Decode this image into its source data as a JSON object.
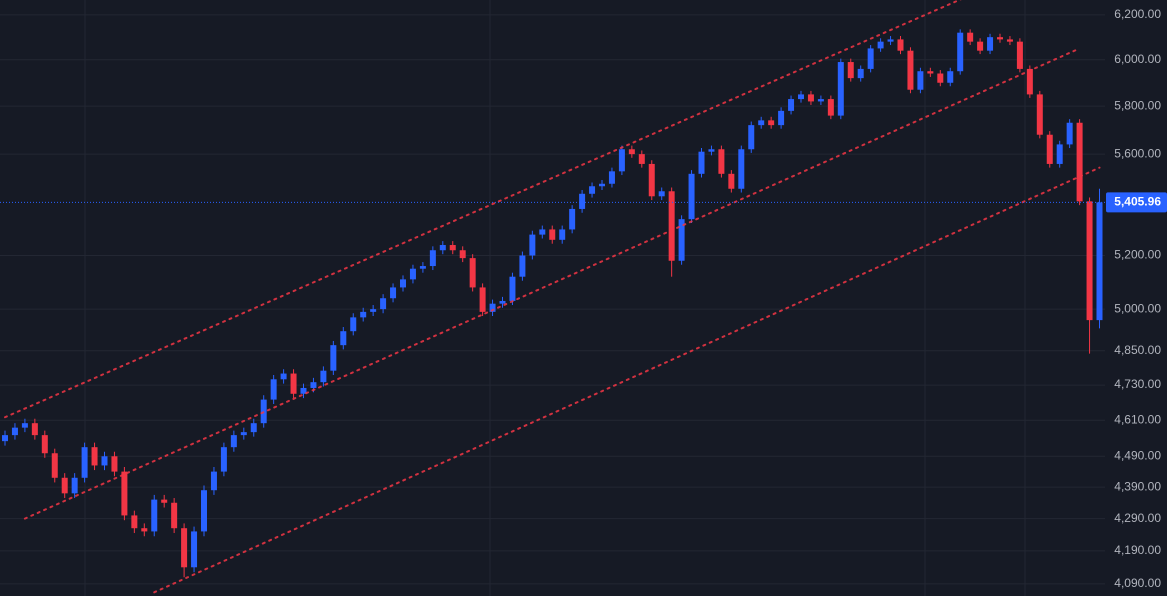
{
  "chart_data": {
    "type": "candlestick",
    "log_scale": true,
    "grid": true,
    "up_color": "#2962ff",
    "down_color": "#f23645",
    "ylim": [
      4054,
      6268
    ],
    "yticks": [
      {
        "value": 6200,
        "label": "6,200.00"
      },
      {
        "value": 6000,
        "label": "6,000.00"
      },
      {
        "value": 5800,
        "label": "5,800.00"
      },
      {
        "value": 5600,
        "label": "5,600.00"
      },
      {
        "value": 5200,
        "label": "5,200.00"
      },
      {
        "value": 5000,
        "label": "5,000.00"
      },
      {
        "value": 4850,
        "label": "4,850.00"
      },
      {
        "value": 4730,
        "label": "4,730.00"
      },
      {
        "value": 4610,
        "label": "4,610.00"
      },
      {
        "value": 4490,
        "label": "4,490.00"
      },
      {
        "value": 4390,
        "label": "4,390.00"
      },
      {
        "value": 4290,
        "label": "4,290.00"
      },
      {
        "value": 4190,
        "label": "4,190.00"
      },
      {
        "value": 4090,
        "label": "4,090.00"
      }
    ],
    "last_price": {
      "value": 5405.96,
      "label": "5,405.96",
      "color": "#2962ff"
    },
    "open": [
      4540,
      4560,
      4585,
      4600,
      4560,
      4500,
      4420,
      4370,
      4420,
      4520,
      4460,
      4490,
      4440,
      4300,
      4260,
      4250,
      4350,
      4340,
      4260,
      4140,
      4250,
      4380,
      4440,
      4520,
      4560,
      4570,
      4600,
      4680,
      4750,
      4770,
      4700,
      4720,
      4740,
      4780,
      4870,
      4920,
      4970,
      4990,
      5000,
      5040,
      5080,
      5110,
      5150,
      5160,
      5220,
      5240,
      5220,
      5190,
      5080,
      4990,
      5020,
      5030,
      5120,
      5200,
      5280,
      5300,
      5260,
      5300,
      5380,
      5440,
      5470,
      5480,
      5530,
      5620,
      5600,
      5560,
      5430,
      5450,
      5180,
      5340,
      5520,
      5610,
      5620,
      5520,
      5460,
      5620,
      5720,
      5740,
      5720,
      5780,
      5830,
      5850,
      5820,
      5830,
      5760,
      5990,
      5920,
      5960,
      6050,
      6080,
      6090,
      6040,
      5870,
      5950,
      5940,
      5900,
      5950,
      6120,
      6080,
      6040,
      6100,
      6090,
      6080,
      5960,
      5850,
      5680,
      5560,
      5640,
      5730,
      5410,
      4960
    ],
    "high": [
      4575,
      4600,
      4615,
      4615,
      4575,
      4515,
      4435,
      4435,
      4535,
      4535,
      4505,
      4505,
      4455,
      4315,
      4275,
      4365,
      4365,
      4355,
      4275,
      4265,
      4395,
      4455,
      4535,
      4575,
      4585,
      4615,
      4695,
      4765,
      4785,
      4785,
      4735,
      4755,
      4795,
      4885,
      4935,
      4985,
      5005,
      5015,
      5055,
      5095,
      5125,
      5165,
      5175,
      5235,
      5255,
      5255,
      5235,
      5205,
      5095,
      5035,
      5045,
      5135,
      5215,
      5295,
      5315,
      5315,
      5315,
      5395,
      5455,
      5485,
      5495,
      5545,
      5635,
      5635,
      5615,
      5575,
      5465,
      5465,
      5355,
      5535,
      5625,
      5635,
      5635,
      5535,
      5635,
      5735,
      5755,
      5755,
      5795,
      5845,
      5865,
      5865,
      5845,
      5845,
      6005,
      6005,
      5975,
      6065,
      6095,
      6105,
      6105,
      6055,
      5965,
      5965,
      5955,
      5965,
      6135,
      6135,
      6095,
      6115,
      6115,
      6105,
      6095,
      5975,
      5865,
      5695,
      5655,
      5745,
      5745,
      5425,
      5460
    ],
    "low": [
      4525,
      4545,
      4570,
      4545,
      4485,
      4405,
      4355,
      4355,
      4405,
      4445,
      4445,
      4425,
      4285,
      4245,
      4235,
      4235,
      4325,
      4245,
      4110,
      4125,
      4235,
      4365,
      4425,
      4505,
      4545,
      4555,
      4585,
      4665,
      4735,
      4685,
      4685,
      4705,
      4725,
      4765,
      4855,
      4905,
      4955,
      4975,
      4985,
      5025,
      5065,
      5095,
      5135,
      5145,
      5205,
      5205,
      5175,
      5065,
      4975,
      4975,
      5005,
      5015,
      5105,
      5185,
      5265,
      5245,
      5245,
      5285,
      5365,
      5425,
      5455,
      5465,
      5515,
      5585,
      5545,
      5415,
      5415,
      5120,
      5165,
      5325,
      5505,
      5595,
      5505,
      5445,
      5445,
      5605,
      5705,
      5705,
      5705,
      5765,
      5815,
      5805,
      5805,
      5745,
      5745,
      5905,
      5905,
      5945,
      6035,
      6065,
      6025,
      5855,
      5855,
      5925,
      5885,
      5885,
      5935,
      6065,
      6025,
      6025,
      6075,
      6065,
      5945,
      5835,
      5665,
      5545,
      5545,
      5625,
      5395,
      4840,
      4930
    ],
    "close": [
      4560,
      4585,
      4600,
      4560,
      4500,
      4420,
      4370,
      4420,
      4520,
      4460,
      4490,
      4440,
      4300,
      4260,
      4250,
      4350,
      4340,
      4260,
      4140,
      4250,
      4380,
      4440,
      4520,
      4560,
      4570,
      4600,
      4680,
      4750,
      4770,
      4700,
      4720,
      4740,
      4780,
      4870,
      4920,
      4970,
      4990,
      5000,
      5040,
      5080,
      5110,
      5150,
      5160,
      5220,
      5240,
      5220,
      5190,
      5080,
      4990,
      5020,
      5030,
      5120,
      5200,
      5280,
      5300,
      5260,
      5300,
      5380,
      5440,
      5470,
      5480,
      5530,
      5620,
      5600,
      5560,
      5430,
      5450,
      5180,
      5340,
      5520,
      5610,
      5620,
      5520,
      5460,
      5620,
      5720,
      5740,
      5720,
      5780,
      5830,
      5850,
      5820,
      5830,
      5760,
      5990,
      5920,
      5960,
      6050,
      6080,
      6090,
      6040,
      5870,
      5950,
      5940,
      5900,
      5950,
      6120,
      6080,
      6040,
      6100,
      6090,
      6080,
      5960,
      5850,
      5680,
      5560,
      5640,
      5730,
      5410,
      4960,
      5405.96
    ],
    "trend_lines": [
      {
        "color": "#f23645",
        "x": [
          0,
          97
        ],
        "values": [
          4620,
          6290
        ]
      },
      {
        "color": "#f23645",
        "x": [
          2,
          108
        ],
        "values": [
          4290,
          6050
        ]
      },
      {
        "color": "#f23645",
        "x": [
          15,
          110
        ],
        "values": [
          4065,
          5545
        ]
      }
    ]
  }
}
